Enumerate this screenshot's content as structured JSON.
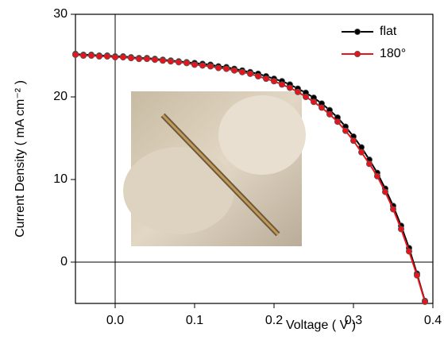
{
  "chart_data": {
    "type": "line",
    "x_label": "Voltage ( V )",
    "y_label": "Current Density ( mA cm⁻² )",
    "x": [
      -0.05,
      -0.04,
      -0.03,
      -0.02,
      -0.01,
      0,
      0.01,
      0.02,
      0.03,
      0.04,
      0.05,
      0.06,
      0.07,
      0.08,
      0.09,
      0.1,
      0.11,
      0.12,
      0.13,
      0.14,
      0.15,
      0.16,
      0.17,
      0.18,
      0.19,
      0.2,
      0.21,
      0.22,
      0.23,
      0.24,
      0.25,
      0.26,
      0.27,
      0.28,
      0.29,
      0.3,
      0.31,
      0.32,
      0.33,
      0.34,
      0.35,
      0.36,
      0.37,
      0.38,
      0.39
    ],
    "series": [
      {
        "name": "flat",
        "color": "#000000",
        "values": [
          25.2,
          25.1,
          25.1,
          25.0,
          25.0,
          24.9,
          24.9,
          24.8,
          24.7,
          24.7,
          24.6,
          24.5,
          24.4,
          24.3,
          24.2,
          24.1,
          24.0,
          23.9,
          23.7,
          23.6,
          23.4,
          23.2,
          23.0,
          22.8,
          22.5,
          22.2,
          21.9,
          21.5,
          21.0,
          20.5,
          19.9,
          19.2,
          18.4,
          17.5,
          16.4,
          15.2,
          13.9,
          12.4,
          10.8,
          8.9,
          6.8,
          4.4,
          1.7,
          -1.4,
          -4.7
        ]
      },
      {
        "name": "180°",
        "color": "#e8141c",
        "values": [
          25.1,
          25.0,
          25.0,
          24.9,
          24.9,
          24.8,
          24.8,
          24.7,
          24.6,
          24.6,
          24.5,
          24.4,
          24.3,
          24.2,
          24.1,
          23.9,
          23.8,
          23.7,
          23.5,
          23.4,
          23.2,
          23.0,
          22.8,
          22.5,
          22.2,
          21.9,
          21.5,
          21.1,
          20.6,
          20.0,
          19.4,
          18.7,
          17.9,
          17.0,
          15.9,
          14.7,
          13.3,
          11.9,
          10.4,
          8.5,
          6.4,
          4.0,
          1.3,
          -1.6,
          -4.8
        ]
      }
    ],
    "xlim": [
      -0.05,
      0.4
    ],
    "xticks": [
      {
        "value": 0,
        "label": "0.0"
      },
      0.1,
      0.2,
      0.3,
      0.4
    ],
    "ylim": [
      -5,
      30
    ],
    "yticks": [
      0,
      10,
      20,
      30
    ],
    "zero_lines": true,
    "legend": "upper right"
  }
}
